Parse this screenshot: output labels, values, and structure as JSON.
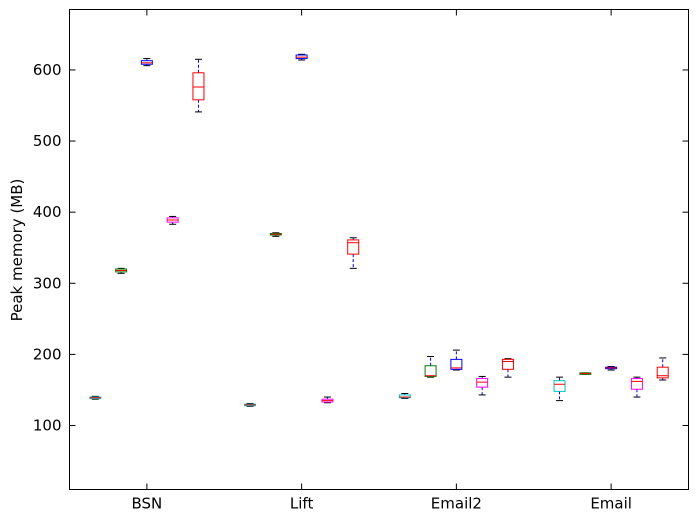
{
  "chart_data": {
    "type": "box",
    "title": "",
    "xlabel": "",
    "ylabel": "Peak memory (MB)",
    "ylim": [
      10,
      685
    ],
    "yticks": [
      100,
      200,
      300,
      400,
      500,
      600
    ],
    "categories": [
      "BSN",
      "Lift",
      "Email2",
      "Email"
    ],
    "grid": false,
    "legend": "none",
    "series": [
      {
        "color": "#00bfbf",
        "boxes": [
          {
            "category": "BSN",
            "whislo": 137,
            "q1": 138,
            "med": 139,
            "q3": 140,
            "whishi": 141
          },
          {
            "category": "Lift",
            "whislo": 127,
            "q1": 128,
            "med": 129,
            "q3": 130,
            "whishi": 131
          },
          {
            "category": "Email2",
            "whislo": 138,
            "q1": 139,
            "med": 140,
            "q3": 143,
            "whishi": 145
          },
          {
            "category": "Email",
            "whislo": 135,
            "q1": 148,
            "med": 158,
            "q3": 163,
            "whishi": 168
          }
        ]
      },
      {
        "color": "#008000",
        "boxes": [
          {
            "category": "BSN",
            "whislo": 314,
            "q1": 316,
            "med": 318,
            "q3": 320,
            "whishi": 321
          },
          {
            "category": "Lift",
            "whislo": 366,
            "q1": 368,
            "med": 369,
            "q3": 370,
            "whishi": 371
          },
          {
            "category": "Email2",
            "whislo": 168,
            "q1": 169,
            "med": 170,
            "q3": 184,
            "whishi": 197
          },
          {
            "category": "Email",
            "whislo": 172,
            "q1": 173,
            "med": 173,
            "q3": 174,
            "whishi": 174
          }
        ]
      },
      {
        "color": "#0000ff",
        "boxes": [
          {
            "category": "BSN",
            "whislo": 606,
            "q1": 608,
            "med": 610,
            "q3": 613,
            "whishi": 616
          },
          {
            "category": "Lift",
            "whislo": 614,
            "q1": 616,
            "med": 618,
            "q3": 621,
            "whishi": 622
          },
          {
            "category": "Email2",
            "whislo": 178,
            "q1": 179,
            "med": 181,
            "q3": 193,
            "whishi": 206
          },
          {
            "category": "Email",
            "whislo": 178,
            "q1": 180,
            "med": 181,
            "q3": 182,
            "whishi": 183
          }
        ]
      },
      {
        "color": "#ff00ff",
        "boxes": [
          {
            "category": "BSN",
            "whislo": 383,
            "q1": 386,
            "med": 389,
            "q3": 392,
            "whishi": 394
          },
          {
            "category": "Lift",
            "whislo": 132,
            "q1": 133,
            "med": 135,
            "q3": 137,
            "whishi": 140
          },
          {
            "category": "Email2",
            "whislo": 143,
            "q1": 154,
            "med": 161,
            "q3": 166,
            "whishi": 169
          },
          {
            "category": "Email",
            "whislo": 140,
            "q1": 151,
            "med": 162,
            "q3": 166,
            "whishi": 168
          }
        ]
      },
      {
        "color": "#ff0000",
        "boxes": [
          {
            "category": "BSN",
            "whislo": 541,
            "q1": 558,
            "med": 576,
            "q3": 596,
            "whishi": 615
          },
          {
            "category": "Lift",
            "whislo": 321,
            "q1": 341,
            "med": 357,
            "q3": 361,
            "whishi": 364
          },
          {
            "category": "Email2",
            "whislo": 168,
            "q1": 179,
            "med": 190,
            "q3": 193,
            "whishi": 194
          },
          {
            "category": "Email",
            "whislo": 164,
            "q1": 167,
            "med": 170,
            "q3": 182,
            "whishi": 195
          }
        ]
      }
    ]
  }
}
